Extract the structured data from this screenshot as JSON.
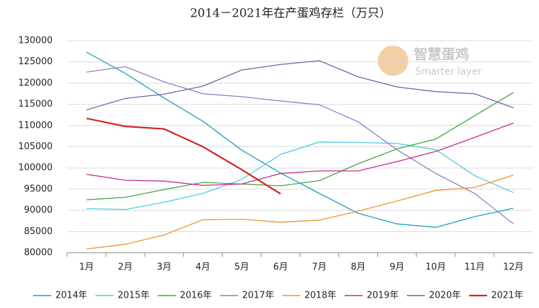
{
  "chart_data": {
    "type": "line",
    "title": "2014－2021年在产蛋鸡存栏（万只）",
    "watermark": {
      "title": "智慧蛋鸡",
      "subtitle": "Smarter layer"
    },
    "categories": [
      "1月",
      "2月",
      "3月",
      "4月",
      "5月",
      "6月",
      "7月",
      "8月",
      "9月",
      "10月",
      "11月",
      "12月"
    ],
    "ylim": [
      80000,
      130000
    ],
    "yticks": [
      80000,
      85000,
      90000,
      95000,
      100000,
      105000,
      110000,
      115000,
      120000,
      125000,
      130000
    ],
    "grid": true,
    "legend": "bottom",
    "series": [
      {
        "name": "2014年",
        "color": "#1a9dc0",
        "values": [
          127300,
          122300,
          116500,
          111000,
          104200,
          98800,
          94000,
          89300,
          86800,
          86000,
          88500,
          90500
        ]
      },
      {
        "name": "2015年",
        "color": "#4dc8e0",
        "values": [
          90400,
          90200,
          91900,
          94000,
          97300,
          103200,
          106100,
          106000,
          105800,
          104300,
          98200,
          94200
        ]
      },
      {
        "name": "2016年",
        "color": "#3aa83a",
        "values": [
          92500,
          93100,
          94900,
          96600,
          96200,
          95800,
          97000,
          101000,
          104500,
          106800,
          112300,
          117800
        ]
      },
      {
        "name": "2017年",
        "color": "#8c7ec4",
        "values": [
          122600,
          123900,
          120300,
          117500,
          116800,
          115800,
          114900,
          110900,
          104300,
          98700,
          94000,
          86800
        ]
      },
      {
        "name": "2018年",
        "color": "#ee9030",
        "values": [
          80900,
          82000,
          84200,
          87800,
          87900,
          87200,
          87700,
          89800,
          92200,
          94700,
          95400,
          98300
        ]
      },
      {
        "name": "2019年",
        "color": "#c0288c",
        "values": [
          98500,
          97100,
          96900,
          95900,
          96200,
          98700,
          99300,
          99300,
          101500,
          103900,
          107200,
          110600
        ]
      },
      {
        "name": "2020年",
        "color": "#7a5aa6",
        "values": [
          113700,
          116400,
          117400,
          119300,
          123100,
          124400,
          125300,
          121500,
          119100,
          118000,
          117500,
          114200
        ]
      },
      {
        "name": "2021年",
        "color": "#d42020",
        "values": [
          111700,
          109800,
          109200,
          105000,
          99600,
          93900,
          null,
          null,
          null,
          null,
          null,
          null
        ]
      }
    ]
  }
}
